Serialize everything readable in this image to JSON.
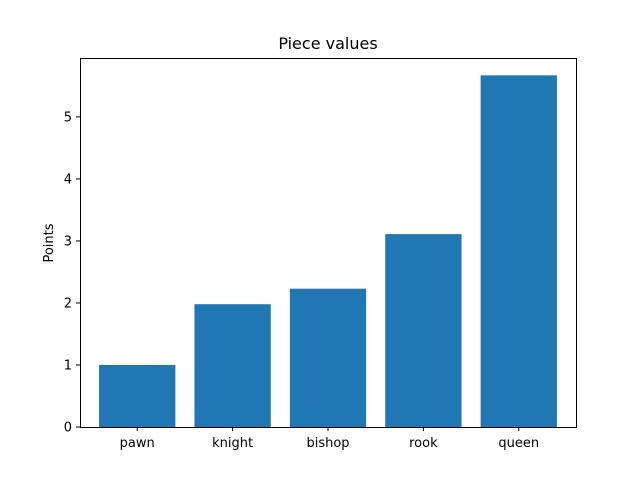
{
  "chart_data": {
    "type": "bar",
    "title": "Piece values",
    "xlabel": "",
    "ylabel": "Points",
    "categories": [
      "pawn",
      "knight",
      "bishop",
      "rook",
      "queen"
    ],
    "values": [
      1.0,
      1.98,
      2.23,
      3.11,
      5.67
    ],
    "ylim": [
      0,
      5.95
    ],
    "yticks": [
      0,
      1,
      2,
      3,
      4,
      5
    ],
    "bar_color": "#1f77b4",
    "grid": false,
    "legend": "none"
  }
}
